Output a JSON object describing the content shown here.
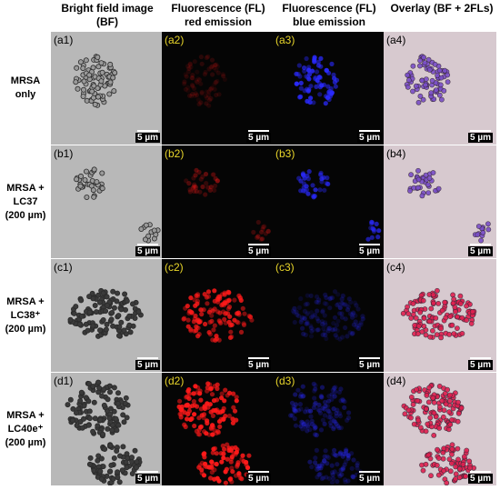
{
  "columns": [
    {
      "line1": "Bright field image",
      "line2": "(BF)"
    },
    {
      "line1": "Fluorescence (FL)",
      "line2": "red emission"
    },
    {
      "line1": "Fluorescence (FL)",
      "line2": "blue emission"
    },
    {
      "line1": "Overlay (BF + 2FLs)",
      "line2": ""
    }
  ],
  "rows": [
    {
      "label_lines": [
        "MRSA",
        "only"
      ],
      "panels": [
        "(a1)",
        "(a2)",
        "(a3)",
        "(a4)"
      ]
    },
    {
      "label_lines": [
        "MRSA +",
        "LC37",
        "(200 µm)"
      ],
      "panels": [
        "(b1)",
        "(b2)",
        "(b3)",
        "(b4)"
      ]
    },
    {
      "label_lines": [
        "MRSA +",
        "LC38⁺",
        "(200 µm)"
      ],
      "panels": [
        "(c1)",
        "(c2)",
        "(c3)",
        "(c4)"
      ]
    },
    {
      "label_lines": [
        "MRSA +",
        "LC40e⁺",
        "(200 µm)"
      ],
      "panels": [
        "(d1)",
        "(d2)",
        "(d3)",
        "(d4)"
      ]
    }
  ],
  "scale_bar": "5 µm",
  "colors": {
    "bf_label": "#000000",
    "fl_label": "#e8d52a",
    "bf_background": "#b8b8b8",
    "fl_background": "#050505",
    "overlay_background": "#d7c9cf",
    "red_signal": "#ff1a1a",
    "blue_signal": "#2a2aff"
  }
}
